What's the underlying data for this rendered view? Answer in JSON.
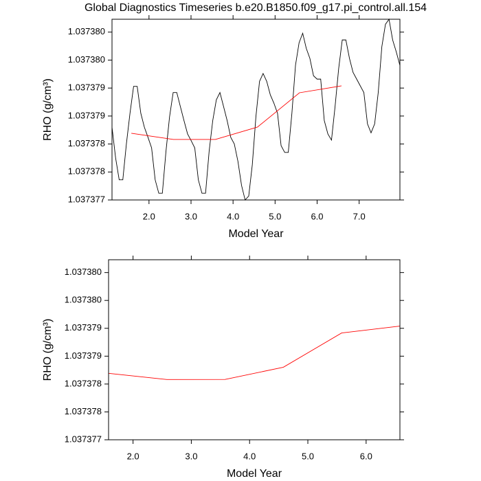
{
  "chart_data": [
    {
      "type": "line",
      "title": "Global Diagnostics Timeseries b.e20.B1850.f09_g17.pi_control.all.154",
      "xlabel": "Model Year",
      "ylabel": "RHO (g/cm³)",
      "xlim": [
        1.12,
        7.97
      ],
      "ylim": [
        1.037377,
        1.03738023
      ],
      "xticks": [
        {
          "value": 2,
          "label": "2.0"
        },
        {
          "value": 3,
          "label": "3.0"
        },
        {
          "value": 4,
          "label": "4.0"
        },
        {
          "value": 5,
          "label": "5.0"
        },
        {
          "value": 6,
          "label": "6.0"
        },
        {
          "value": 7,
          "label": "7.0"
        }
      ],
      "yticks": [
        {
          "value": 1.037377,
          "label": "1.037377"
        },
        {
          "value": 1.0373775,
          "label": "1.037378"
        },
        {
          "value": 1.037378,
          "label": "1.037378"
        },
        {
          "value": 1.0373785,
          "label": "1.037379"
        },
        {
          "value": 1.037379,
          "label": "1.037379"
        },
        {
          "value": 1.0373795,
          "label": "1.037380"
        },
        {
          "value": 1.03738,
          "label": "1.037380"
        }
      ],
      "series": [
        {
          "color": "#000000",
          "x": [
            1.12,
            1.206,
            1.291,
            1.377,
            1.462,
            1.548,
            1.634,
            1.719,
            1.805,
            1.89,
            1.976,
            2.062,
            2.147,
            2.233,
            2.318,
            2.404,
            2.49,
            2.575,
            2.661,
            2.746,
            2.832,
            2.918,
            3.003,
            3.089,
            3.174,
            3.26,
            3.346,
            3.431,
            3.517,
            3.602,
            3.688,
            3.774,
            3.859,
            3.945,
            4.03,
            4.116,
            4.202,
            4.287,
            4.373,
            4.458,
            4.544,
            4.63,
            4.715,
            4.801,
            4.886,
            4.972,
            5.058,
            5.143,
            5.229,
            5.314,
            5.4,
            5.486,
            5.571,
            5.657,
            5.742,
            5.828,
            5.914,
            5.999,
            6.085,
            6.17,
            6.256,
            6.342,
            6.427,
            6.513,
            6.598,
            6.684,
            6.77,
            6.855,
            6.941,
            7.026,
            7.112,
            7.198,
            7.283,
            7.369,
            7.454,
            7.54,
            7.626,
            7.711,
            7.797,
            7.882,
            7.968
          ],
          "values": [
            1.0373783,
            1.03737775,
            1.03737736,
            1.03737736,
            1.037378,
            1.03737855,
            1.03737903,
            1.03737903,
            1.03737855,
            1.0373783,
            1.03737812,
            1.03737793,
            1.03737736,
            1.03737712,
            1.03737712,
            1.03737787,
            1.03737849,
            1.03737892,
            1.03737892,
            1.03737867,
            1.03737842,
            1.03737818,
            1.03737806,
            1.03737793,
            1.03737736,
            1.03737712,
            1.03737712,
            1.03737787,
            1.03737842,
            1.03737879,
            1.03737892,
            1.03737867,
            1.03737842,
            1.03737812,
            1.037378,
            1.03737769,
            1.03737726,
            1.037377,
            1.03737707,
            1.03737763,
            1.03737849,
            1.03737912,
            1.03737926,
            1.03737912,
            1.03737888,
            1.03737873,
            1.03737855,
            1.03737797,
            1.03737785,
            1.03737785,
            1.03737855,
            1.03737941,
            1.03737981,
            1.03737998,
            1.03737971,
            1.03737953,
            1.03737922,
            1.03737916,
            1.03737916,
            1.03737842,
            1.03737818,
            1.03737807,
            1.03737867,
            1.03737935,
            1.03737986,
            1.03737986,
            1.03737953,
            1.03737928,
            1.03737916,
            1.03737904,
            1.03737892,
            1.03737836,
            1.0373782,
            1.03737836,
            1.03737892,
            1.03737974,
            1.03738014,
            1.03738023,
            1.03737986,
            1.03737965,
            1.03737941
          ]
        },
        {
          "color": "#ff0000",
          "x": [
            1.58,
            2.58,
            3.58,
            4.58,
            5.58,
            6.58
          ],
          "values": [
            1.037378192,
            1.037378081,
            1.037378082,
            1.037378302,
            1.037378916,
            1.037379039
          ]
        }
      ]
    },
    {
      "type": "line",
      "xlabel": "Model Year",
      "ylabel": "RHO (g/cm³)",
      "xlim": [
        1.58,
        6.58
      ],
      "ylim": [
        1.037377,
        1.03738023
      ],
      "xticks": [
        {
          "value": 2,
          "label": "2.0"
        },
        {
          "value": 3,
          "label": "3.0"
        },
        {
          "value": 4,
          "label": "4.0"
        },
        {
          "value": 5,
          "label": "5.0"
        },
        {
          "value": 6,
          "label": "6.0"
        }
      ],
      "yticks": [
        {
          "value": 1.037377,
          "label": "1.037377"
        },
        {
          "value": 1.0373775,
          "label": "1.037378"
        },
        {
          "value": 1.037378,
          "label": "1.037378"
        },
        {
          "value": 1.0373785,
          "label": "1.037379"
        },
        {
          "value": 1.037379,
          "label": "1.037379"
        },
        {
          "value": 1.0373795,
          "label": "1.037380"
        },
        {
          "value": 1.03738,
          "label": "1.037380"
        }
      ],
      "series": [
        {
          "color": "#ff0000",
          "x": [
            1.58,
            2.58,
            3.58,
            4.58,
            5.58,
            6.58
          ],
          "values": [
            1.037378192,
            1.037378081,
            1.037378082,
            1.037378302,
            1.037378916,
            1.037379039
          ]
        }
      ]
    }
  ]
}
